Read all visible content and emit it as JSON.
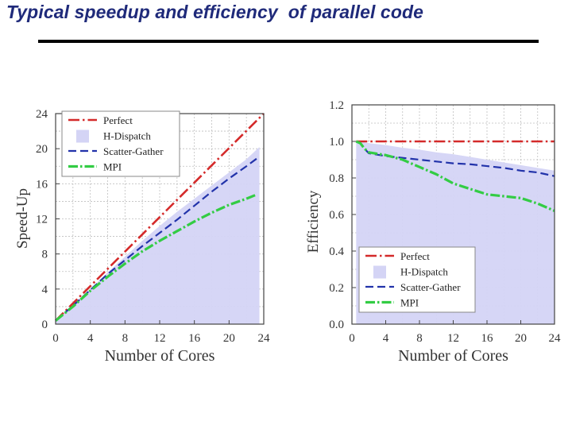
{
  "slide": {
    "title": "Typical speedup and efficiency  of parallel code"
  },
  "colors": {
    "perfect": "#d42a2a",
    "hdispatch_fill": "#d4d4f5",
    "scatter": "#2233aa",
    "mpi": "#33cc44",
    "grid": "#bfbfbf",
    "axis": "#444444",
    "title": "#1f2a7a"
  },
  "chart_data": [
    {
      "type": "line",
      "title": "",
      "xlabel": "Number of Cores",
      "ylabel": "Speed-Up",
      "xlim": [
        0,
        24
      ],
      "ylim": [
        0,
        24
      ],
      "xticks": [
        0,
        4,
        8,
        12,
        16,
        20,
        24
      ],
      "yticks": [
        0,
        4,
        8,
        12,
        16,
        20,
        24
      ],
      "xtick_labels": [
        "0",
        "4",
        "8",
        "12",
        "16",
        "20",
        "24"
      ],
      "ytick_labels": [
        "0",
        "4",
        "8",
        "12",
        "16",
        "20",
        "24"
      ],
      "grid": true,
      "legend_position": "top-left",
      "legend": [
        "Perfect",
        "H-Dispatch",
        "Scatter-Gather",
        "MPI"
      ],
      "series": [
        {
          "name": "Perfect",
          "style": "dash-dot",
          "x": [
            0,
            24
          ],
          "y": [
            0.4,
            24
          ]
        },
        {
          "name": "H-Dispatch",
          "style": "area",
          "x": [
            0,
            2,
            4,
            6,
            8,
            10,
            12,
            14,
            16,
            18,
            20,
            22,
            23.5
          ],
          "y": [
            0.4,
            2.2,
            4.0,
            5.9,
            7.7,
            9.5,
            11.2,
            12.8,
            14.3,
            15.8,
            17.3,
            18.8,
            20.2
          ]
        },
        {
          "name": "Scatter-Gather",
          "style": "dashed",
          "x": [
            0,
            2,
            4,
            6,
            8,
            10,
            12,
            14,
            16,
            18,
            20,
            22,
            23.5
          ],
          "y": [
            0.4,
            2.1,
            3.9,
            5.7,
            7.3,
            8.9,
            10.4,
            11.9,
            13.5,
            15.1,
            16.6,
            18.0,
            19.1
          ]
        },
        {
          "name": "MPI",
          "style": "dash-dot",
          "x": [
            0,
            2,
            4,
            6,
            8,
            10,
            12,
            14,
            16,
            18,
            20,
            22,
            23
          ],
          "y": [
            0.4,
            2.0,
            3.8,
            5.4,
            6.9,
            8.3,
            9.5,
            10.6,
            11.7,
            12.7,
            13.6,
            14.3,
            14.7
          ]
        }
      ]
    },
    {
      "type": "line",
      "title": "",
      "xlabel": "Number of Cores",
      "ylabel": "Efficiency",
      "xlim": [
        0,
        24
      ],
      "ylim": [
        0,
        1.2
      ],
      "xticks": [
        0,
        4,
        8,
        12,
        16,
        20,
        24
      ],
      "yticks": [
        0.0,
        0.2,
        0.4,
        0.6,
        0.8,
        1.0,
        1.2
      ],
      "xtick_labels": [
        "0",
        "4",
        "8",
        "12",
        "16",
        "20",
        "24"
      ],
      "ytick_labels": [
        "0.0",
        "0.2",
        "0.4",
        "0.6",
        "0.8",
        "1.0",
        "1.2"
      ],
      "grid": true,
      "legend_position": "bottom-left",
      "legend": [
        "Perfect",
        "H-Dispatch",
        "Scatter-Gather",
        "MPI"
      ],
      "series": [
        {
          "name": "Perfect",
          "style": "dash-dot",
          "x": [
            0.5,
            24
          ],
          "y": [
            1.0,
            1.0
          ]
        },
        {
          "name": "H-Dispatch",
          "style": "area",
          "x": [
            0.5,
            1,
            2,
            4,
            6,
            8,
            10,
            12,
            14,
            16,
            18,
            20,
            22,
            24
          ],
          "y": [
            1.0,
            1.0,
            0.99,
            0.98,
            0.965,
            0.955,
            0.94,
            0.93,
            0.915,
            0.9,
            0.885,
            0.87,
            0.855,
            0.84
          ]
        },
        {
          "name": "Scatter-Gather",
          "style": "dashed",
          "x": [
            0.5,
            1,
            1.5,
            2,
            4,
            6,
            8,
            10,
            12,
            14,
            16,
            18,
            20,
            22,
            24
          ],
          "y": [
            1.0,
            0.99,
            0.96,
            0.935,
            0.92,
            0.91,
            0.9,
            0.89,
            0.88,
            0.875,
            0.865,
            0.855,
            0.84,
            0.83,
            0.81
          ]
        },
        {
          "name": "MPI",
          "style": "dash-dot",
          "x": [
            0.5,
            1,
            1.5,
            2,
            4,
            6,
            8,
            10,
            12,
            14,
            16,
            18,
            20,
            22,
            24
          ],
          "y": [
            1.0,
            0.99,
            0.96,
            0.94,
            0.925,
            0.9,
            0.86,
            0.82,
            0.77,
            0.74,
            0.71,
            0.7,
            0.69,
            0.66,
            0.62
          ]
        }
      ]
    }
  ]
}
